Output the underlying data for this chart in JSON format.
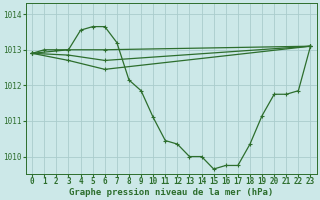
{
  "title": "Graphe pression niveau de la mer (hPa)",
  "background_color": "#cce8e8",
  "grid_color": "#aacccc",
  "line_color": "#2d6e2d",
  "xlim": [
    -0.5,
    23.5
  ],
  "ylim": [
    1009.5,
    1014.3
  ],
  "yticks": [
    1010,
    1011,
    1012,
    1013,
    1014
  ],
  "xticks": [
    0,
    1,
    2,
    3,
    4,
    5,
    6,
    7,
    8,
    9,
    10,
    11,
    12,
    13,
    14,
    15,
    16,
    17,
    18,
    19,
    20,
    21,
    22,
    23
  ],
  "series_main": {
    "x": [
      0,
      1,
      2,
      3,
      4,
      5,
      6,
      7,
      8,
      9,
      10,
      11,
      12,
      13,
      14,
      15,
      16,
      17,
      18,
      19,
      20,
      21,
      22,
      23
    ],
    "y": [
      1012.9,
      1013.0,
      1013.0,
      1013.0,
      1013.55,
      1013.65,
      1013.65,
      1013.2,
      1012.15,
      1011.85,
      1011.1,
      1010.45,
      1010.35,
      1010.0,
      1010.0,
      1009.65,
      1009.75,
      1009.75,
      1010.35,
      1011.15,
      1011.75,
      1011.75,
      1011.85,
      1013.1
    ]
  },
  "series_flat": [
    {
      "x": [
        0,
        3,
        6,
        23
      ],
      "y": [
        1012.9,
        1013.0,
        1013.0,
        1013.1
      ]
    },
    {
      "x": [
        0,
        3,
        6,
        23
      ],
      "y": [
        1012.9,
        1012.85,
        1012.7,
        1013.1
      ]
    },
    {
      "x": [
        0,
        3,
        6,
        23
      ],
      "y": [
        1012.9,
        1012.7,
        1012.45,
        1013.1
      ]
    }
  ],
  "figsize": [
    3.2,
    2.0
  ],
  "dpi": 100,
  "title_fontsize": 6.5,
  "tick_fontsize": 5.5
}
